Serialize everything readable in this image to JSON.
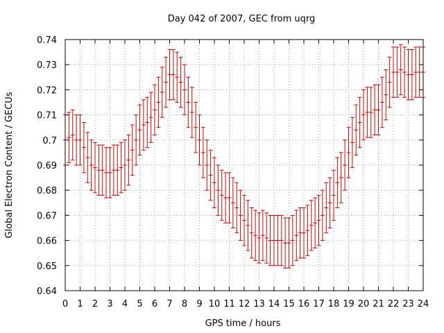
{
  "chart_data": {
    "type": "scatter",
    "title": "Day 042 of 2007, GEC from uqrg",
    "xlabel": "GPS time / hours",
    "ylabel": "Global Electron Content / GECUs",
    "xlim": [
      0,
      24
    ],
    "ylim": [
      0.64,
      0.74
    ],
    "x_ticks": [
      "0",
      "1",
      "2",
      "3",
      "4",
      "5",
      "6",
      "7",
      "8",
      "9",
      "10",
      "11",
      "12",
      "13",
      "14",
      "15",
      "16",
      "17",
      "18",
      "19",
      "20",
      "21",
      "22",
      "23",
      "24"
    ],
    "y_ticks": [
      "0.64",
      "0.65",
      "0.66",
      "0.67",
      "0.68",
      "0.69",
      "0.7",
      "0.71",
      "0.72",
      "0.73",
      "0.74"
    ],
    "grid": true,
    "error_bar_halfwidth": 0.01,
    "color": "#cc0000",
    "series": [
      {
        "x": [
          0.0,
          0.25,
          0.5,
          0.75,
          1.0,
          1.25,
          1.5,
          1.75,
          2.0,
          2.25,
          2.5,
          2.75,
          3.0,
          3.25,
          3.5,
          3.75,
          4.0,
          4.25,
          4.5,
          4.75,
          5.0,
          5.25,
          5.5,
          5.75,
          6.0,
          6.25,
          6.5,
          6.75,
          7.0,
          7.25,
          7.5,
          7.75,
          8.0,
          8.25,
          8.5,
          8.75,
          9.0,
          9.25,
          9.5,
          9.75,
          10.0,
          10.25,
          10.5,
          10.75,
          11.0,
          11.25,
          11.5,
          11.75,
          12.0,
          12.25,
          12.5,
          12.75,
          13.0,
          13.25,
          13.5,
          13.75,
          14.0,
          14.25,
          14.5,
          14.75,
          15.0,
          15.25,
          15.5,
          15.75,
          16.0,
          16.25,
          16.5,
          16.75,
          17.0,
          17.25,
          17.5,
          17.75,
          18.0,
          18.25,
          18.5,
          18.75,
          19.0,
          19.25,
          19.5,
          19.75,
          20.0,
          20.25,
          20.5,
          20.75,
          21.0,
          21.25,
          21.5,
          21.75,
          22.0,
          22.25,
          22.5,
          22.75,
          23.0,
          23.25,
          23.5,
          23.75,
          24.0
        ],
        "y": [
          0.7,
          0.701,
          0.702,
          0.7,
          0.7,
          0.697,
          0.693,
          0.69,
          0.689,
          0.688,
          0.688,
          0.687,
          0.687,
          0.688,
          0.688,
          0.689,
          0.69,
          0.692,
          0.696,
          0.7,
          0.704,
          0.706,
          0.707,
          0.709,
          0.712,
          0.715,
          0.719,
          0.723,
          0.726,
          0.726,
          0.725,
          0.723,
          0.72,
          0.715,
          0.711,
          0.705,
          0.7,
          0.695,
          0.69,
          0.686,
          0.683,
          0.68,
          0.678,
          0.677,
          0.677,
          0.675,
          0.673,
          0.67,
          0.668,
          0.666,
          0.663,
          0.662,
          0.661,
          0.662,
          0.661,
          0.66,
          0.66,
          0.66,
          0.66,
          0.659,
          0.659,
          0.66,
          0.662,
          0.663,
          0.663,
          0.664,
          0.666,
          0.667,
          0.668,
          0.67,
          0.673,
          0.675,
          0.678,
          0.683,
          0.685,
          0.69,
          0.695,
          0.699,
          0.704,
          0.707,
          0.71,
          0.711,
          0.711,
          0.712,
          0.712,
          0.715,
          0.718,
          0.723,
          0.727,
          0.727,
          0.728,
          0.727,
          0.726,
          0.726,
          0.727,
          0.727,
          0.727
        ]
      }
    ]
  }
}
